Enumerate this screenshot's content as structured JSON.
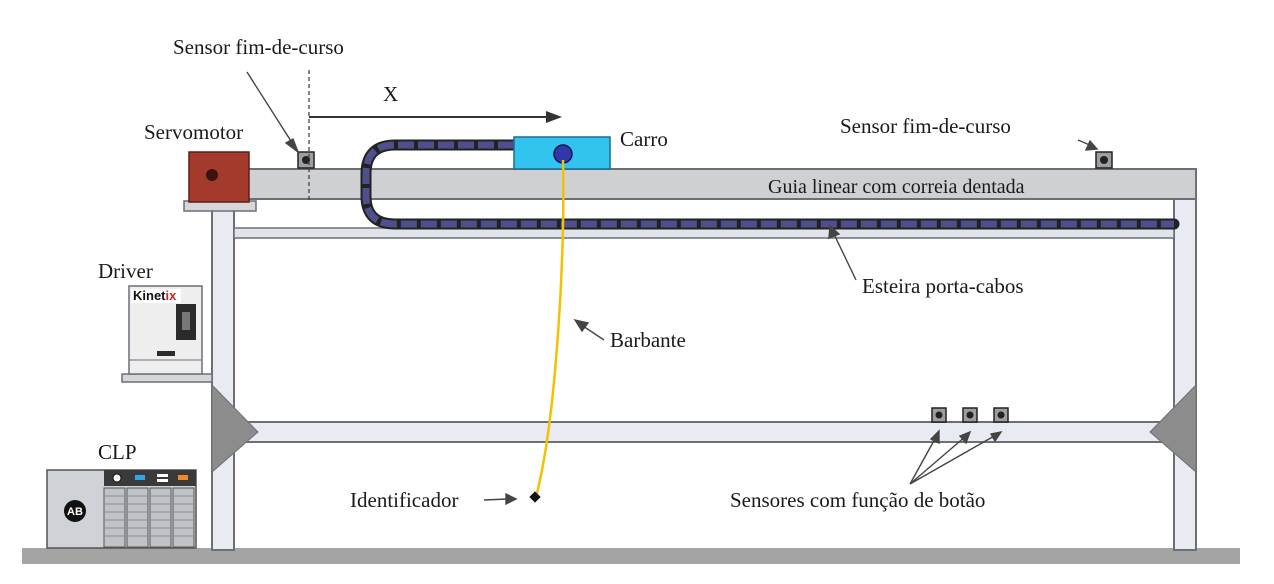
{
  "labels": {
    "sensor_left": "Sensor fim-de-curso",
    "x_axis": "X",
    "servomotor": "Servomotor",
    "carro": "Carro",
    "sensor_right": "Sensor fim-de-curso",
    "guia": "Guia linear com correia dentada",
    "driver": "Driver",
    "esteira": "Esteira porta-cabos",
    "barbante": "Barbante",
    "clp": "CLP",
    "identificador": "Identificador",
    "sensores_botao": "Sensores com função de botão"
  },
  "logos": {
    "kinetix": "Kinetix",
    "ab": "AB"
  },
  "colors": {
    "frame": "#e8ecf2",
    "frame_stroke": "#6b6f78",
    "rail": "#cfd0d2",
    "servo": "#a33a2c",
    "carro": "#33c3ef",
    "chain": "#4f4f8c",
    "string": "#f2c200",
    "floor": "#a4a4a4"
  }
}
